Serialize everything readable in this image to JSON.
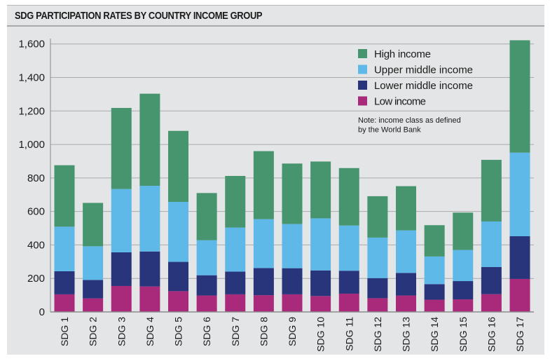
{
  "chart_data": {
    "type": "bar",
    "stacked": true,
    "title": "SDG PARTICIPATION RATES BY COUNTRY INCOME GROUP",
    "xlabel": "",
    "ylabel": "",
    "ylim": [
      0,
      1600
    ],
    "yticks": [
      0,
      200,
      400,
      600,
      800,
      1000,
      1200,
      1400,
      1600
    ],
    "ytick_labels": [
      "0",
      "200",
      "400",
      "600",
      "800",
      "1,000",
      "1,200",
      "1,400",
      "1,600"
    ],
    "grid": true,
    "legend_position": "top-right",
    "categories": [
      "SDG 1",
      "SDG 2",
      "SDG 3",
      "SDG 4",
      "SDG 5",
      "SDG 6",
      "SDG 7",
      "SDG 8",
      "SDG 9",
      "SDG 10",
      "SDG 11",
      "SDG 12",
      "SDG 13",
      "SDG 14",
      "SDG 15",
      "SDG 16",
      "SDG 17"
    ],
    "series": [
      {
        "name": "Low income",
        "color": "#a92a7a",
        "values": [
          105,
          81,
          155,
          152,
          124,
          98,
          105,
          100,
          105,
          95,
          109,
          82,
          98,
          73,
          75,
          106,
          197
        ]
      },
      {
        "name": "Lower middle income",
        "color": "#29357b",
        "values": [
          138,
          110,
          201,
          209,
          175,
          121,
          136,
          162,
          156,
          153,
          137,
          120,
          135,
          93,
          109,
          162,
          255
        ]
      },
      {
        "name": "Upper middle income",
        "color": "#5fb9e8",
        "values": [
          266,
          201,
          378,
          392,
          358,
          209,
          263,
          292,
          264,
          311,
          270,
          242,
          254,
          165,
          186,
          272,
          499
        ]
      },
      {
        "name": "High income",
        "color": "#46956f",
        "values": [
          367,
          259,
          484,
          550,
          424,
          282,
          308,
          406,
          361,
          339,
          343,
          247,
          264,
          187,
          223,
          368,
          671
        ]
      }
    ],
    "legend_order": [
      "High income",
      "Upper middle income",
      "Lower middle income",
      "Low income"
    ],
    "note": [
      "Note: income class as defined",
      "by the World Bank"
    ]
  }
}
